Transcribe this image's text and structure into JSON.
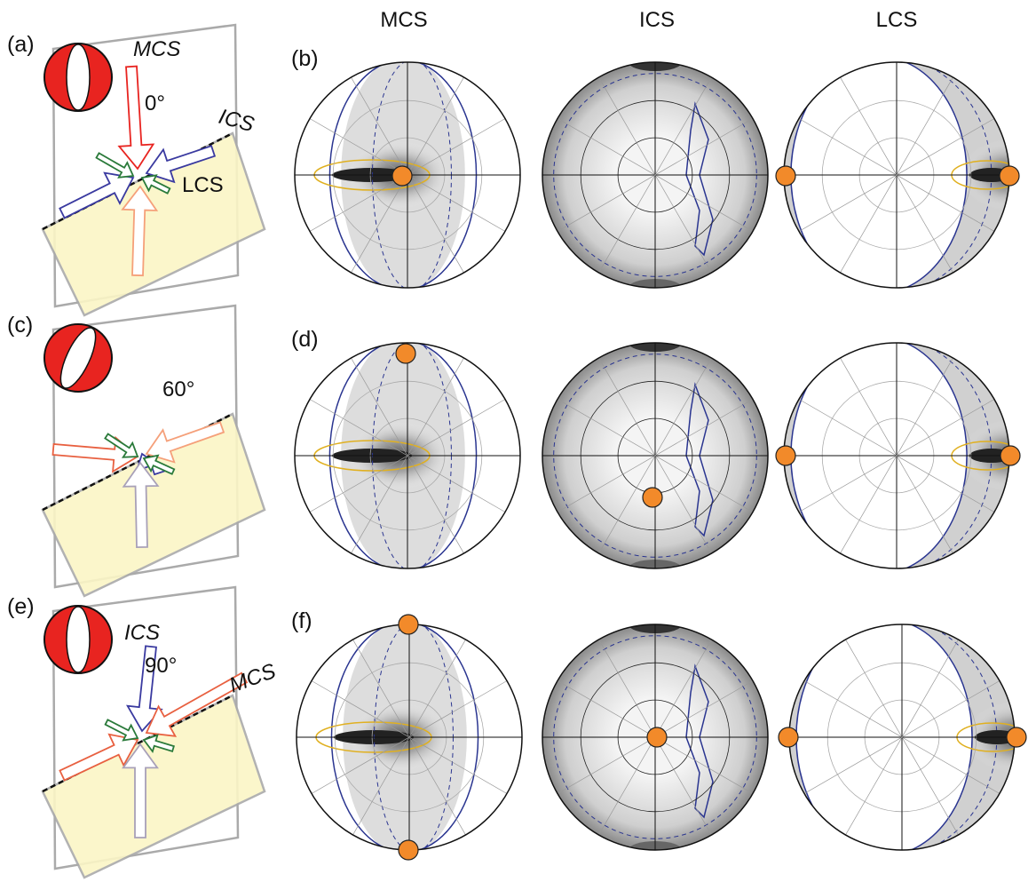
{
  "column_headers": [
    "MCS",
    "ICS",
    "LCS"
  ],
  "rows": [
    {
      "schematic_label": "(a)",
      "stereonet_label": "(b)",
      "arrow_labels": [
        "MCS",
        "0°",
        "ICS",
        "LCS"
      ]
    },
    {
      "schematic_label": "(c)",
      "stereonet_label": "(d)",
      "arrow_labels": [
        "60°"
      ]
    },
    {
      "schematic_label": "(e)",
      "stereonet_label": "(f)",
      "arrow_labels": [
        "ICS",
        "90°",
        "MCS"
      ]
    }
  ]
}
